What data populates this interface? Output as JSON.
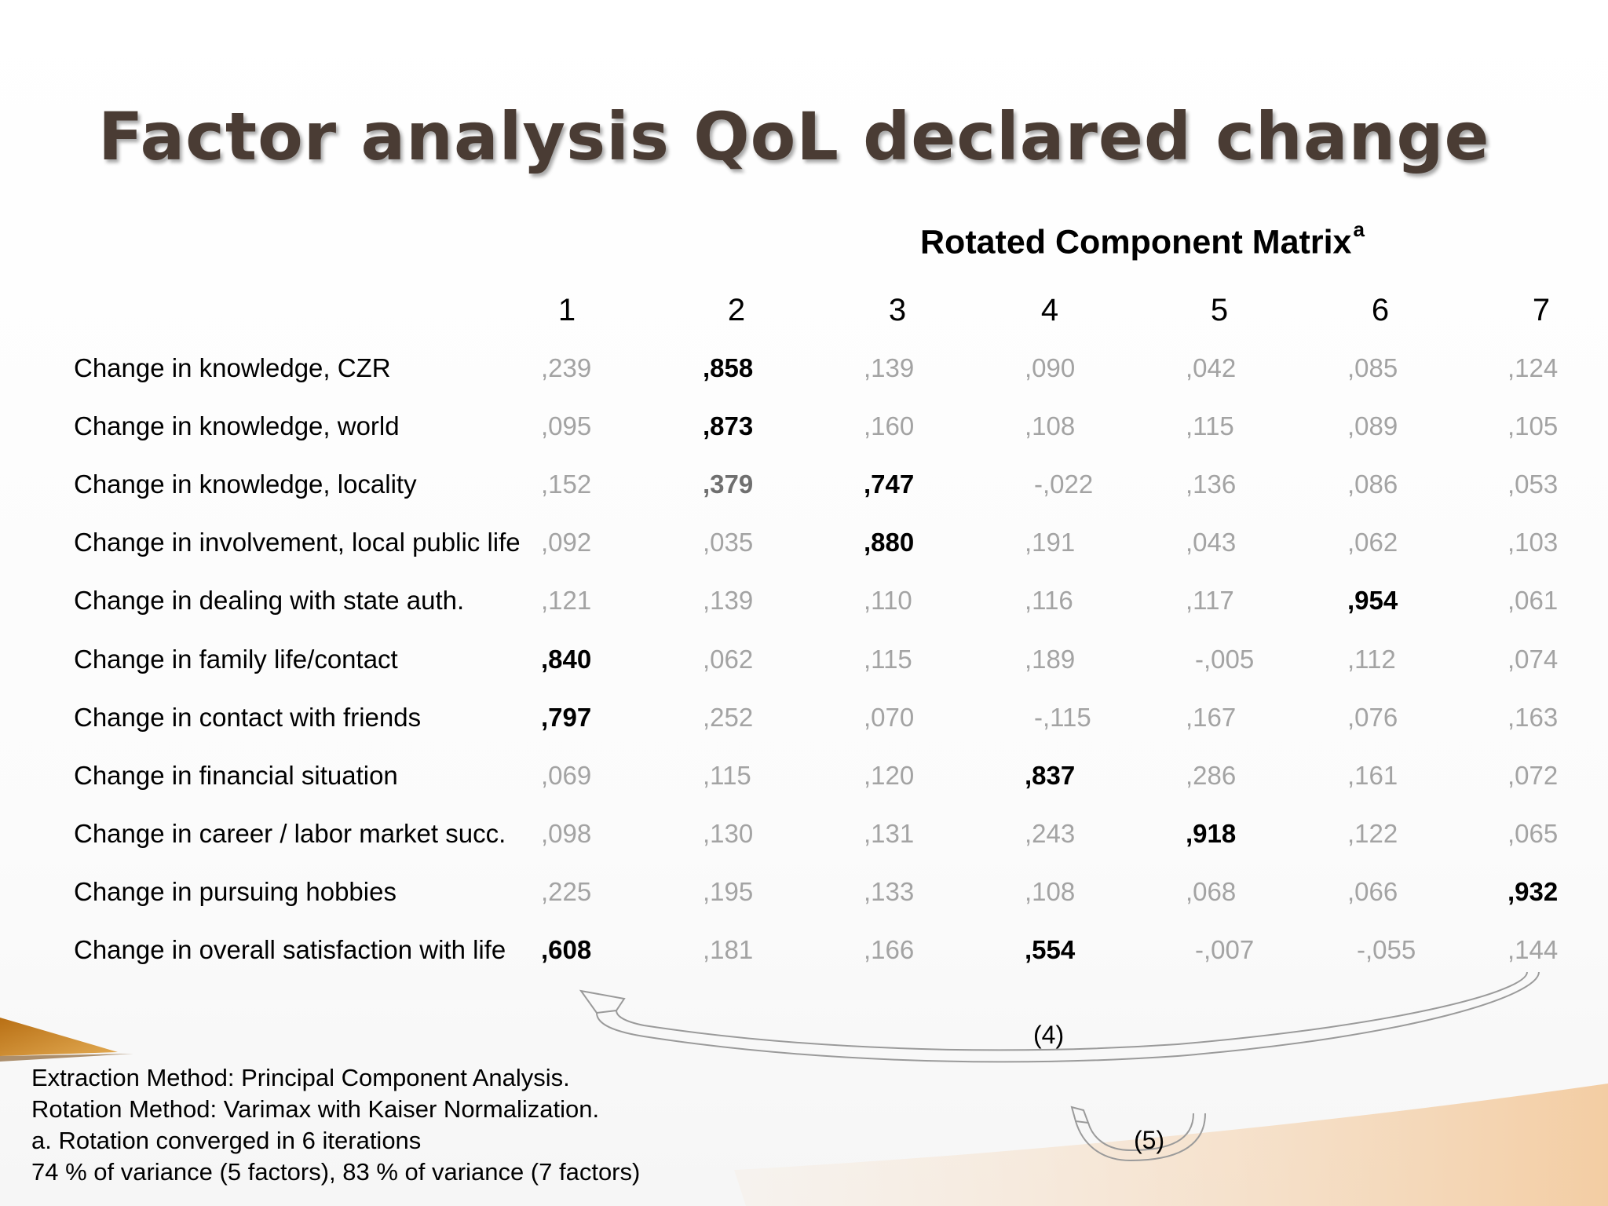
{
  "slide": {
    "title": "Factor analysis QoL declared change"
  },
  "matrix": {
    "title": "Rotated Component Matrix",
    "title_superscript": "a",
    "columns": [
      "1",
      "2",
      "3",
      "4",
      "5",
      "6",
      "7"
    ],
    "rows": [
      {
        "label": "Change in knowledge, CZR",
        "values": [
          ",239",
          ",858",
          ",139",
          ",090",
          ",042",
          ",085",
          ",124"
        ],
        "emphasis": [
          "n",
          "b",
          "n",
          "n",
          "n",
          "n",
          "n"
        ]
      },
      {
        "label": "Change in knowledge, world",
        "values": [
          ",095",
          ",873",
          ",160",
          ",108",
          ",115",
          ",089",
          ",105"
        ],
        "emphasis": [
          "n",
          "b",
          "n",
          "n",
          "n",
          "n",
          "n"
        ]
      },
      {
        "label": "Change in knowledge, locality",
        "values": [
          ",152",
          ",379",
          ",747",
          "-,022",
          ",136",
          ",086",
          ",053"
        ],
        "emphasis": [
          "n",
          "m",
          "b",
          "n",
          "n",
          "n",
          "n"
        ]
      },
      {
        "label": "Change in involvement, local public life",
        "values": [
          ",092",
          ",035",
          ",880",
          ",191",
          ",043",
          ",062",
          ",103"
        ],
        "emphasis": [
          "n",
          "n",
          "b",
          "n",
          "n",
          "n",
          "n"
        ]
      },
      {
        "label": "Change in dealing with state auth.",
        "values": [
          ",121",
          ",139",
          ",110",
          ",116",
          ",117",
          ",954",
          ",061"
        ],
        "emphasis": [
          "n",
          "n",
          "n",
          "n",
          "n",
          "b",
          "n"
        ]
      },
      {
        "label": "Change in family life/contact",
        "values": [
          ",840",
          ",062",
          ",115",
          ",189",
          "-,005",
          ",112",
          ",074"
        ],
        "emphasis": [
          "b",
          "n",
          "n",
          "n",
          "n",
          "n",
          "n"
        ]
      },
      {
        "label": "Change in contact with friends",
        "values": [
          ",797",
          ",252",
          ",070",
          "-,115",
          ",167",
          ",076",
          ",163"
        ],
        "emphasis": [
          "b",
          "n",
          "n",
          "n",
          "n",
          "n",
          "n"
        ]
      },
      {
        "label": "Change in financial situation",
        "values": [
          ",069",
          ",115",
          ",120",
          ",837",
          ",286",
          ",161",
          ",072"
        ],
        "emphasis": [
          "n",
          "n",
          "n",
          "b",
          "n",
          "n",
          "n"
        ]
      },
      {
        "label": "Change in career / labor market succ.",
        "values": [
          ",098",
          ",130",
          ",131",
          ",243",
          ",918",
          ",122",
          ",065"
        ],
        "emphasis": [
          "n",
          "n",
          "n",
          "n",
          "b",
          "n",
          "n"
        ]
      },
      {
        "label": "Change in pursuing hobbies",
        "values": [
          ",225",
          ",195",
          ",133",
          ",108",
          ",068",
          ",066",
          ",932"
        ],
        "emphasis": [
          "n",
          "n",
          "n",
          "n",
          "n",
          "n",
          "b"
        ]
      },
      {
        "label": "Change in overall satisfaction with life",
        "values": [
          ",608",
          ",181",
          ",166",
          ",554",
          "-,007",
          "-,055",
          ",144"
        ],
        "emphasis": [
          "b",
          "n",
          "n",
          "b",
          "n",
          "n",
          "n"
        ]
      }
    ]
  },
  "annotations": {
    "arrow_4": "(4)",
    "arrow_5": "(5)"
  },
  "notes": [
    "Extraction Method: Principal Component Analysis.",
    "Rotation Method: Varimax with Kaiser Normalization.",
    "a. Rotation converged in 6 iterations",
    "74 % of variance (5 factors), 83 % of variance (7 factors)"
  ],
  "colors": {
    "title": "#4a3c34",
    "loading_strong": "#000000",
    "loading_weak": "#a3a3a3",
    "decor_gold": "#c8892a"
  }
}
